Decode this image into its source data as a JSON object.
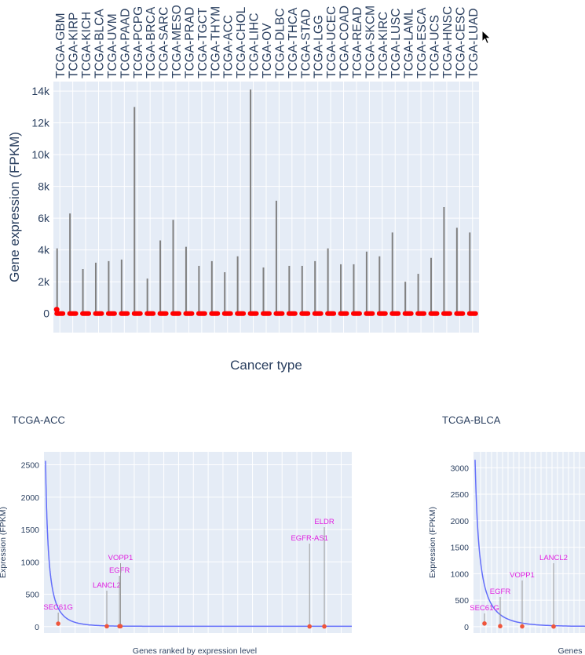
{
  "chart_data": [
    {
      "type": "box",
      "xlabel": "Cancer type",
      "ylabel": "Gene expression (FPKM)",
      "ylim": [
        -1200,
        14600
      ],
      "yticks": [
        0,
        2000,
        4000,
        6000,
        8000,
        10000,
        12000,
        14000
      ],
      "ytick_labels": [
        "0",
        "2k",
        "4k",
        "6k",
        "8k",
        "10k",
        "12k",
        "14k"
      ],
      "categories": [
        "TCGA-GBM",
        "TCGA-KIRP",
        "TCGA-KICH",
        "TCGA-BLCA",
        "TCGA-UVM",
        "TCGA-PAAD",
        "TCGA-PCPG",
        "TCGA-BRCA",
        "TCGA-SARC",
        "TCGA-MESO",
        "TCGA-PRAD",
        "TCGA-TGCT",
        "TCGA-THYM",
        "TCGA-ACC",
        "TCGA-CHOL",
        "TCGA-LIHC",
        "TCGA-OV",
        "TCGA-DLBC",
        "TCGA-THCA",
        "TCGA-STAD",
        "TCGA-LGG",
        "TCGA-UCEC",
        "TCGA-COAD",
        "TCGA-READ",
        "TCGA-SKCM",
        "TCGA-KIRC",
        "TCGA-LUSC",
        "TCGA-LAML",
        "TCGA-ESCA",
        "TCGA-UCS",
        "TCGA-HNSC",
        "TCGA-CESC",
        "TCGA-LUAD"
      ],
      "max_values": [
        4100,
        6300,
        2800,
        3200,
        3300,
        3400,
        13000,
        2200,
        4600,
        5900,
        4200,
        3000,
        3300,
        2600,
        3600,
        14100,
        2900,
        7100,
        3000,
        3000,
        3300,
        4100,
        3100,
        3100,
        3900,
        3600,
        5100,
        2000,
        2500,
        3500,
        6700,
        5400,
        5100
      ],
      "colors": {
        "whisker": "#808080",
        "outlier": "#ff0000",
        "plot_bg": "#e5ecf6",
        "grid": "#ffffff"
      }
    },
    {
      "type": "line",
      "title": "TCGA-ACC",
      "xlabel": "Genes ranked by expression level",
      "ylabel": "Expression (FPKM)",
      "ylim": [
        -100,
        2700
      ],
      "yticks": [
        0,
        500,
        1000,
        1500,
        2000,
        2500
      ],
      "curve_peak": 2560,
      "annotations": [
        {
          "label": "SEC61G",
          "rank": 120,
          "value": 45
        },
        {
          "label": "LANCL2",
          "rank": 580,
          "value": 5
        },
        {
          "label": "EGFR",
          "rank": 700,
          "value": 5
        },
        {
          "label": "VOPP1",
          "rank": 710,
          "value": 5
        },
        {
          "label": "EGFR-AS1",
          "rank": 2500,
          "value": 2
        },
        {
          "label": "ELDR",
          "rank": 2640,
          "value": 2
        }
      ],
      "colors": {
        "line": "#636efa",
        "label": "#e020e0",
        "point": "#ef553b"
      }
    },
    {
      "type": "line",
      "title": "TCGA-BLCA",
      "xlabel": "Genes",
      "ylabel": "Expression (FPKM)",
      "ylim": [
        -120,
        3300
      ],
      "yticks": [
        0,
        500,
        1000,
        1500,
        2000,
        2500,
        3000
      ],
      "curve_peak": 3150,
      "annotations": [
        {
          "label": "SEC61G",
          "rank": 60,
          "value": 60
        },
        {
          "label": "EGFR",
          "rank": 160,
          "value": 10
        },
        {
          "label": "VOPP1",
          "rank": 300,
          "value": 5
        },
        {
          "label": "LANCL2",
          "rank": 500,
          "value": 3
        }
      ],
      "colors": {
        "line": "#636efa",
        "label": "#e020e0",
        "point": "#ef553b"
      }
    }
  ]
}
